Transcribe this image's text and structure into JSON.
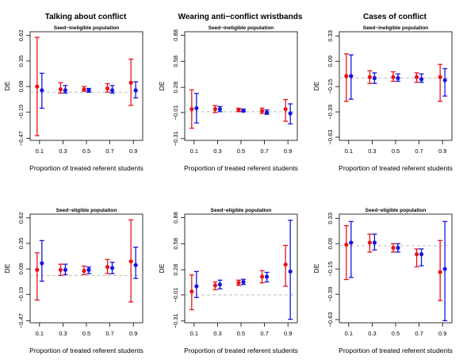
{
  "colors": {
    "red": "#e8141b",
    "blue": "#1515e0",
    "reference": "#bdbdbd"
  },
  "columns": [
    {
      "title": "Talking about conflict"
    },
    {
      "title": "Wearing anti−conflict wristbands"
    },
    {
      "title": "Cases of conflict"
    }
  ],
  "chart_data": [
    {
      "type": "scatter",
      "title": "Talking about conflict",
      "subtitle": "Seed−ineligible population",
      "xlabel": "Proportion of treated referent students",
      "ylabel": "DE",
      "x": [
        0.1,
        0.3,
        0.5,
        0.7,
        0.9
      ],
      "xtick_labels": [
        "0.1",
        "0.3",
        "0.5",
        "0.7",
        "0.9"
      ],
      "yticks": [
        -0.47,
        -0.19,
        0.08,
        0.35,
        0.62
      ],
      "ytick_labels": [
        "−0.47",
        "−0.19",
        "0.08",
        "0.35",
        "0.62"
      ],
      "ylim": [
        -0.49,
        0.66
      ],
      "reference_line": 0.02,
      "series": [
        {
          "color": "red",
          "est": [
            0.08,
            0.05,
            0.05,
            0.06,
            0.12
          ],
          "lo": [
            -0.44,
            0.01,
            0.03,
            0.02,
            -0.12
          ],
          "hi": [
            0.6,
            0.12,
            0.08,
            0.11,
            0.37
          ]
        },
        {
          "color": "blue",
          "est": [
            0.04,
            0.04,
            0.04,
            0.04,
            0.04
          ],
          "lo": [
            -0.15,
            0.01,
            0.02,
            0.01,
            -0.04
          ],
          "hi": [
            0.22,
            0.09,
            0.06,
            0.09,
            0.13
          ]
        }
      ]
    },
    {
      "type": "scatter",
      "title": "Wearing anti−conflict wristbands",
      "subtitle": "Seed−ineligible population",
      "xlabel": "Proportion of treated referent students",
      "ylabel": "DE",
      "x": [
        0.1,
        0.3,
        0.5,
        0.7,
        0.9
      ],
      "xtick_labels": [
        "0.1",
        "0.3",
        "0.5",
        "0.7",
        "0.9"
      ],
      "yticks": [
        -0.31,
        -0.01,
        0.28,
        0.58,
        0.88
      ],
      "ytick_labels": [
        "−0.31",
        "−0.01",
        "0.28",
        "0.58",
        "0.88"
      ],
      "ylim": [
        -0.33,
        0.92
      ],
      "reference_line": 0.0,
      "series": [
        {
          "color": "red",
          "est": [
            0.03,
            0.03,
            0.02,
            0.01,
            0.03
          ],
          "lo": [
            -0.19,
            -0.01,
            0.0,
            -0.02,
            -0.11
          ],
          "hi": [
            0.25,
            0.07,
            0.04,
            0.04,
            0.14
          ]
        },
        {
          "color": "blue",
          "est": [
            0.04,
            0.03,
            0.01,
            -0.01,
            -0.02
          ],
          "lo": [
            -0.13,
            0.0,
            0.0,
            -0.03,
            -0.14
          ],
          "hi": [
            0.21,
            0.06,
            0.03,
            0.02,
            0.09
          ]
        }
      ]
    },
    {
      "type": "scatter",
      "title": "Cases of conflict",
      "subtitle": "Seed−ineligible population",
      "xlabel": "Proportion of treated referent students",
      "ylabel": "DE",
      "x": [
        0.1,
        0.3,
        0.5,
        0.7,
        0.9
      ],
      "xtick_labels": [
        "0.1",
        "0.3",
        "0.5",
        "0.7",
        "0.9"
      ],
      "yticks": [
        -0.63,
        -0.39,
        -0.15,
        0.09,
        0.33
      ],
      "ytick_labels": [
        "−0.63",
        "−0.39",
        "−0.15",
        "0.09",
        "0.33"
      ],
      "ylim": [
        -0.66,
        0.37
      ],
      "reference_line": -0.07,
      "series": [
        {
          "color": "red",
          "est": [
            -0.05,
            -0.06,
            -0.06,
            -0.06,
            -0.06
          ],
          "lo": [
            -0.29,
            -0.12,
            -0.1,
            -0.11,
            -0.29
          ],
          "hi": [
            0.16,
            0.0,
            -0.01,
            -0.02,
            0.06
          ]
        },
        {
          "color": "blue",
          "est": [
            -0.05,
            -0.07,
            -0.07,
            -0.08,
            -0.09
          ],
          "lo": [
            -0.27,
            -0.12,
            -0.1,
            -0.11,
            -0.24
          ],
          "hi": [
            0.15,
            -0.02,
            -0.03,
            -0.03,
            0.02
          ]
        }
      ]
    },
    {
      "type": "scatter",
      "title": "Talking about conflict",
      "subtitle": "Seed−eligible population",
      "xlabel": "Proportion of treated referent students",
      "ylabel": "DE",
      "x": [
        0.1,
        0.3,
        0.5,
        0.7,
        0.9
      ],
      "xtick_labels": [
        "0.1",
        "0.3",
        "0.5",
        "0.7",
        "0.9"
      ],
      "yticks": [
        -0.47,
        -0.19,
        0.08,
        0.35,
        0.62
      ],
      "ytick_labels": [
        "−0.47",
        "−0.19",
        "0.08",
        "0.35",
        "0.62"
      ],
      "ylim": [
        -0.49,
        0.66
      ],
      "reference_line": 0.01,
      "series": [
        {
          "color": "red",
          "est": [
            0.07,
            0.07,
            0.06,
            0.1,
            0.16
          ],
          "lo": [
            -0.25,
            0.01,
            0.02,
            0.03,
            -0.27
          ],
          "hi": [
            0.25,
            0.13,
            0.11,
            0.18,
            0.6
          ]
        },
        {
          "color": "blue",
          "est": [
            0.14,
            0.07,
            0.07,
            0.09,
            0.12
          ],
          "lo": [
            -0.05,
            0.02,
            0.03,
            0.03,
            -0.02
          ],
          "hi": [
            0.38,
            0.13,
            0.1,
            0.15,
            0.31
          ]
        }
      ]
    },
    {
      "type": "scatter",
      "title": "Wearing anti−conflict wristbands",
      "subtitle": "Seed−eligible population",
      "xlabel": "Proportion of treated referent students",
      "ylabel": "DE",
      "x": [
        0.1,
        0.3,
        0.5,
        0.7,
        0.9
      ],
      "xtick_labels": [
        "0.1",
        "0.3",
        "0.5",
        "0.7",
        "0.9"
      ],
      "yticks": [
        -0.31,
        -0.01,
        0.28,
        0.58,
        0.88
      ],
      "ytick_labels": [
        "−0.31",
        "−0.01",
        "0.28",
        "0.58",
        "0.88"
      ],
      "ylim": [
        -0.33,
        0.92
      ],
      "reference_line": -0.01,
      "series": [
        {
          "color": "red",
          "est": [
            0.03,
            0.1,
            0.13,
            0.2,
            0.34
          ],
          "lo": [
            -0.18,
            0.05,
            0.1,
            0.13,
            0.09
          ],
          "hi": [
            0.22,
            0.14,
            0.16,
            0.27,
            0.56
          ]
        },
        {
          "color": "blue",
          "est": [
            0.09,
            0.11,
            0.14,
            0.2,
            0.26
          ],
          "lo": [
            -0.04,
            0.06,
            0.11,
            0.14,
            -0.29
          ],
          "hi": [
            0.26,
            0.16,
            0.17,
            0.25,
            0.85
          ]
        }
      ]
    },
    {
      "type": "scatter",
      "title": "Cases of conflict",
      "subtitle": "Seed−eligible population",
      "xlabel": "Proportion of treated referent students",
      "ylabel": "DE",
      "x": [
        0.1,
        0.3,
        0.5,
        0.7,
        0.9
      ],
      "xtick_labels": [
        "0.1",
        "0.3",
        "0.5",
        "0.7",
        "0.9"
      ],
      "yticks": [
        -0.63,
        -0.39,
        -0.15,
        0.09,
        0.33
      ],
      "ytick_labels": [
        "−0.63",
        "−0.39",
        "−0.15",
        "0.09",
        "0.33"
      ],
      "ylim": [
        -0.66,
        0.37
      ],
      "reference_line": 0.07,
      "series": [
        {
          "color": "red",
          "est": [
            0.08,
            0.1,
            0.05,
            -0.01,
            -0.18
          ],
          "lo": [
            -0.25,
            0.01,
            0.01,
            -0.13,
            -0.45
          ],
          "hi": [
            0.26,
            0.18,
            0.09,
            0.04,
            0.12
          ]
        },
        {
          "color": "blue",
          "est": [
            0.1,
            0.1,
            0.05,
            -0.01,
            -0.15
          ],
          "lo": [
            -0.23,
            0.03,
            0.01,
            -0.12,
            -0.64
          ],
          "hi": [
            0.3,
            0.18,
            0.09,
            0.04,
            0.3
          ]
        }
      ]
    }
  ]
}
